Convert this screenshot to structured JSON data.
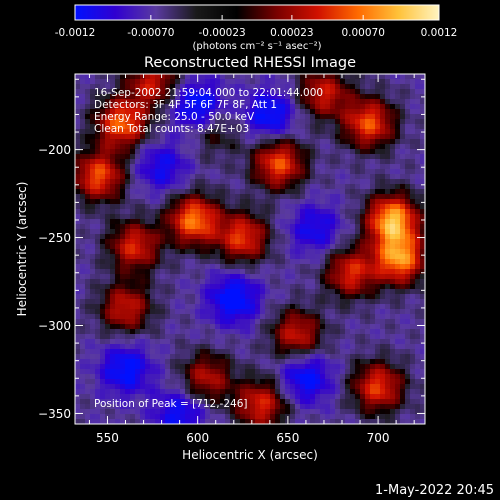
{
  "colorbar": {
    "ticks": [
      "-0.0012",
      "-0.00070",
      "-0.00023",
      "0.00023",
      "0.00070",
      "0.0012"
    ],
    "tick_values": [
      -0.0012,
      -0.0007,
      -0.00023,
      0.00023,
      0.0007,
      0.0012
    ],
    "range": [
      -0.0012,
      0.0012
    ],
    "unit_label": "(photons cm⁻² s⁻¹ asec⁻²)",
    "colors": [
      "#0010ff",
      "#3000d0",
      "#5a3aa0",
      "#1a1a1a",
      "#000000",
      "#7a0000",
      "#d01000",
      "#ff6a00",
      "#ffc23a",
      "#fff4c0"
    ]
  },
  "chart_data": {
    "type": "heatmap",
    "title": "Reconstructed RHESSI Image",
    "xlabel": "Heliocentric X (arcsec)",
    "ylabel": "Heliocentric Y (arcsec)",
    "xlim": [
      532,
      726
    ],
    "ylim": [
      -356,
      -157
    ],
    "xticks": [
      550,
      600,
      650,
      700
    ],
    "yticks": [
      -200,
      -250,
      -300,
      -350
    ],
    "grid": false,
    "info_lines": [
      "16-Sep-2002 21:59:04.000 to 22:01:44.000",
      "Detectors: 3F 4F 5F 6F 7F 8F, Att 1",
      "Energy Range: 25.0 - 50.0 keV",
      "Clean    Total counts: 8.47E+03"
    ],
    "peak_label": "Position of Peak = [712,-246]",
    "peak": [
      712,
      -246
    ],
    "colormap": "rhessi-diverging (blue-purple-black-red-yellow-white)",
    "value_range": [
      -0.0012,
      0.0012
    ],
    "blobs": [
      {
        "x": 708,
        "y": -240,
        "level": 0.95
      },
      {
        "x": 712,
        "y": -262,
        "level": 0.85
      },
      {
        "x": 685,
        "y": -270,
        "level": 0.6
      },
      {
        "x": 558,
        "y": -185,
        "level": 0.75
      },
      {
        "x": 545,
        "y": -215,
        "level": 0.7
      },
      {
        "x": 575,
        "y": -162,
        "level": 0.55
      },
      {
        "x": 598,
        "y": -240,
        "level": 0.8
      },
      {
        "x": 625,
        "y": -250,
        "level": 0.65
      },
      {
        "x": 645,
        "y": -208,
        "level": 0.7
      },
      {
        "x": 695,
        "y": -185,
        "level": 0.7
      },
      {
        "x": 670,
        "y": -168,
        "level": 0.55
      },
      {
        "x": 565,
        "y": -255,
        "level": 0.6
      },
      {
        "x": 560,
        "y": -290,
        "level": 0.55
      },
      {
        "x": 655,
        "y": -305,
        "level": 0.55
      },
      {
        "x": 635,
        "y": -345,
        "level": 0.6
      },
      {
        "x": 700,
        "y": -335,
        "level": 0.65
      },
      {
        "x": 605,
        "y": -330,
        "level": 0.5
      },
      {
        "x": 610,
        "y": -190,
        "level": 0.25
      },
      {
        "x": 560,
        "y": -325,
        "level": -0.45
      },
      {
        "x": 590,
        "y": -350,
        "level": -0.4
      },
      {
        "x": 620,
        "y": -285,
        "level": -0.5
      },
      {
        "x": 660,
        "y": -330,
        "level": -0.45
      },
      {
        "x": 600,
        "y": -175,
        "level": -0.5
      },
      {
        "x": 640,
        "y": -180,
        "level": -0.45
      },
      {
        "x": 665,
        "y": -245,
        "level": -0.35
      },
      {
        "x": 580,
        "y": -210,
        "level": -0.35
      }
    ]
  },
  "footer": {
    "date": "1-May-2022 20:45"
  }
}
